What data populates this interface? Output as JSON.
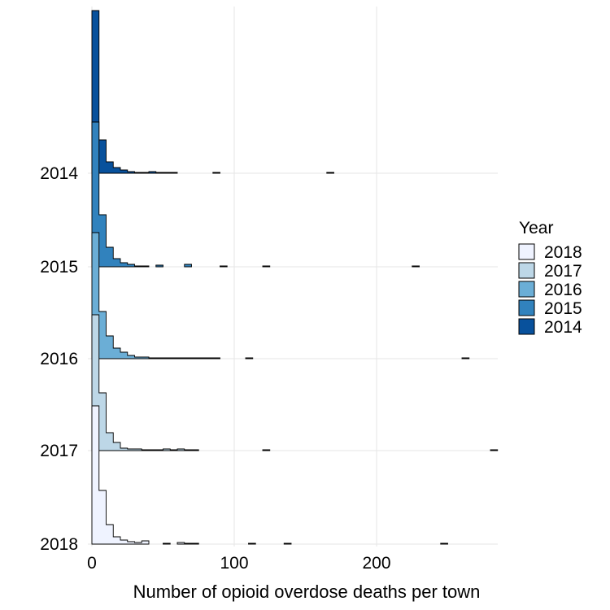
{
  "chart_data": {
    "type": "ridgeline-histogram",
    "xlabel": "Number of opioid overdose deaths per town",
    "xticks": [
      0,
      100,
      200
    ],
    "xlim": [
      -3,
      290
    ],
    "bin_width": 5,
    "grid": true,
    "legend": {
      "title": "Year",
      "position": "right",
      "entries": [
        {
          "label": "2018",
          "color": "#eff3ff"
        },
        {
          "label": "2017",
          "color": "#bdd7e7"
        },
        {
          "label": "2016",
          "color": "#6baed6"
        },
        {
          "label": "2015",
          "color": "#3182bd"
        },
        {
          "label": "2014",
          "color": "#08519c"
        }
      ]
    },
    "series": [
      {
        "name": "2018",
        "color": "#eff3ff",
        "bins": [
          [
            0,
            170
          ],
          [
            5,
            66
          ],
          [
            10,
            24
          ],
          [
            15,
            9
          ],
          [
            20,
            5
          ],
          [
            25,
            3
          ],
          [
            30,
            2
          ],
          [
            35,
            4
          ],
          [
            50,
            1
          ],
          [
            60,
            2
          ],
          [
            65,
            1
          ],
          [
            70,
            1
          ],
          [
            110,
            1
          ],
          [
            135,
            1
          ],
          [
            245,
            1
          ]
        ]
      },
      {
        "name": "2017",
        "color": "#bdd7e7",
        "bins": [
          [
            0,
            167
          ],
          [
            5,
            71
          ],
          [
            10,
            22
          ],
          [
            15,
            10
          ],
          [
            20,
            3
          ],
          [
            25,
            2
          ],
          [
            30,
            2
          ],
          [
            35,
            1
          ],
          [
            40,
            1
          ],
          [
            45,
            1
          ],
          [
            50,
            2
          ],
          [
            55,
            1
          ],
          [
            60,
            2
          ],
          [
            65,
            1
          ],
          [
            70,
            1
          ],
          [
            120,
            1
          ],
          [
            280,
            1
          ]
        ]
      },
      {
        "name": "2016",
        "color": "#6baed6",
        "bins": [
          [
            0,
            155
          ],
          [
            5,
            58
          ],
          [
            10,
            28
          ],
          [
            15,
            13
          ],
          [
            20,
            8
          ],
          [
            25,
            4
          ],
          [
            30,
            2
          ],
          [
            35,
            2
          ],
          [
            40,
            1
          ],
          [
            45,
            1
          ],
          [
            50,
            1
          ],
          [
            55,
            1
          ],
          [
            60,
            1
          ],
          [
            65,
            1
          ],
          [
            70,
            1
          ],
          [
            75,
            1
          ],
          [
            80,
            1
          ],
          [
            85,
            1
          ],
          [
            108,
            1
          ],
          [
            260,
            1
          ]
        ]
      },
      {
        "name": "2015",
        "color": "#3182bd",
        "bins": [
          [
            0,
            178
          ],
          [
            5,
            64
          ],
          [
            10,
            24
          ],
          [
            15,
            10
          ],
          [
            20,
            5
          ],
          [
            25,
            3
          ],
          [
            30,
            1
          ],
          [
            35,
            1
          ],
          [
            45,
            2
          ],
          [
            65,
            3
          ],
          [
            90,
            1
          ],
          [
            120,
            1
          ],
          [
            225,
            1
          ]
        ]
      },
      {
        "name": "2014",
        "color": "#08519c",
        "bins": [
          [
            0,
            200
          ],
          [
            5,
            41
          ],
          [
            10,
            14
          ],
          [
            15,
            7
          ],
          [
            20,
            4
          ],
          [
            25,
            2
          ],
          [
            30,
            1
          ],
          [
            35,
            1
          ],
          [
            40,
            2
          ],
          [
            45,
            1
          ],
          [
            50,
            1
          ],
          [
            55,
            1
          ],
          [
            85,
            1
          ],
          [
            165,
            1
          ]
        ]
      }
    ],
    "y_categories": [
      "2014",
      "2015",
      "2016",
      "2017",
      "2018"
    ]
  }
}
